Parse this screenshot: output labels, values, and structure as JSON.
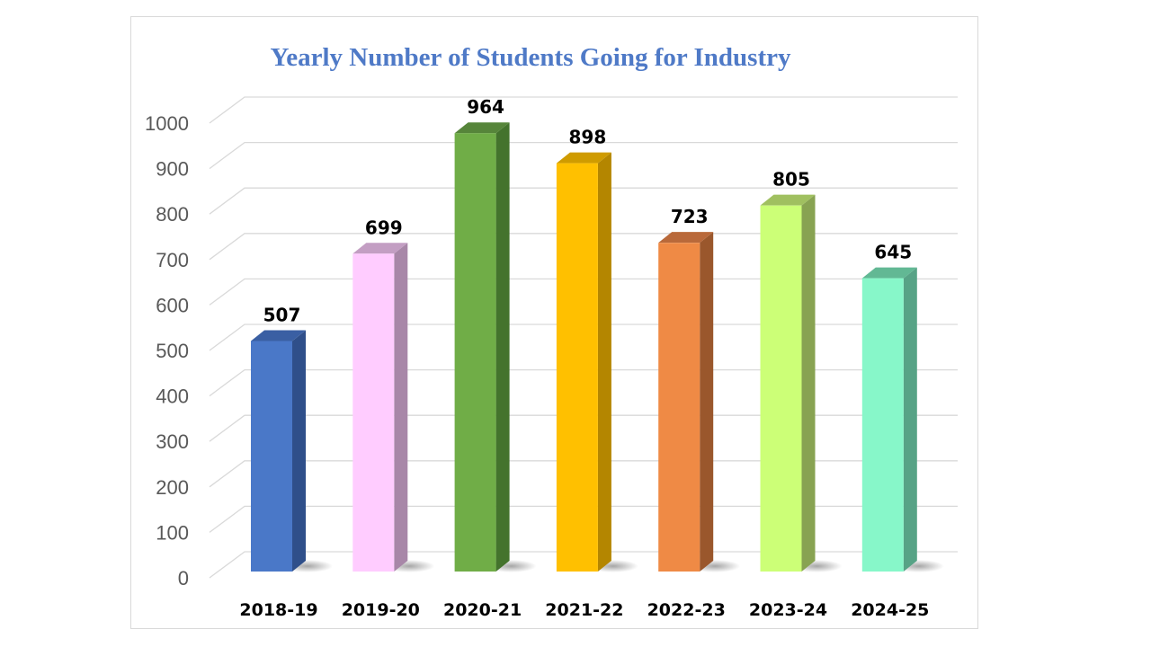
{
  "chart_data": {
    "type": "bar",
    "style": "3d-column",
    "title": "Yearly Number of Students Going for Industry",
    "xlabel": "",
    "ylabel": "",
    "categories": [
      "2018-19",
      "2019-20",
      "2020-21",
      "2021-22",
      "2022-23",
      "2023-24",
      "2024-25"
    ],
    "values": [
      507,
      699,
      964,
      898,
      723,
      805,
      645
    ],
    "data_labels": [
      "507",
      "699",
      "964",
      "898",
      "723",
      "805",
      "645"
    ],
    "ylim": [
      0,
      1000
    ],
    "yticks": [
      0,
      100,
      200,
      300,
      400,
      500,
      600,
      700,
      800,
      900,
      1000
    ],
    "ytick_labels": [
      "0",
      "100",
      "200",
      "300",
      "400",
      "500",
      "600",
      "700",
      "800",
      "900",
      "1000"
    ],
    "grid": true,
    "legend": "none",
    "bar_colors": [
      {
        "front": "#4a78c8",
        "side": "#2f4f8a",
        "top": "#3a5fa3"
      },
      {
        "front": "#ffccff",
        "side": "#a887a8",
        "top": "#c39ec3"
      },
      {
        "front": "#70ad47",
        "side": "#44732d",
        "top": "#56853a"
      },
      {
        "front": "#ffc000",
        "side": "#b48600",
        "top": "#cf9b00"
      },
      {
        "front": "#ef8a45",
        "side": "#9a572c",
        "top": "#b9693a"
      },
      {
        "front": "#ccff77",
        "side": "#88a352",
        "top": "#a0c060"
      },
      {
        "front": "#87f7c9",
        "side": "#57a386",
        "top": "#62b894"
      }
    ],
    "title_color": "#4f7ac7",
    "axis_text_color": "#595959",
    "gridline_color": "#d9d9d9"
  }
}
